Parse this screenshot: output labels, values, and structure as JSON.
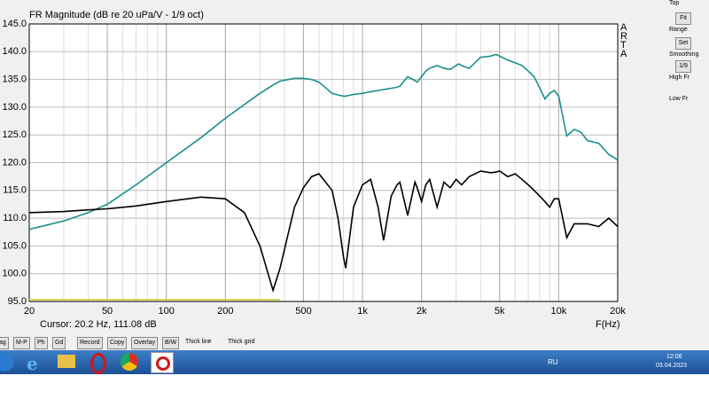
{
  "chart_data": {
    "type": "line",
    "title": "FR Magnitude (dB re 20 uPa/V - 1/9 oct)",
    "x_label": "F(Hz)",
    "cursor": "Cursor: 20.2 Hz, 111.08 dB",
    "side_label": "ARTA",
    "log_x": true,
    "grid": true,
    "xlim": [
      20,
      20000
    ],
    "ylim": [
      95,
      145
    ],
    "xticks": [
      20,
      50,
      100,
      200,
      500,
      {
        "value": 1000,
        "label": "1k"
      },
      {
        "value": 2000,
        "label": "2k"
      },
      {
        "value": 5000,
        "label": "5k"
      },
      {
        "value": 10000,
        "label": "10k"
      },
      {
        "value": 20000,
        "label": "20k"
      }
    ],
    "yticks": [
      {
        "value": 95,
        "label": "95.0"
      },
      {
        "value": 100,
        "label": "100.0"
      },
      {
        "value": 105,
        "label": "105.0"
      },
      {
        "value": 110,
        "label": "110.0"
      },
      {
        "value": 115,
        "label": "115.0"
      },
      {
        "value": 120,
        "label": "120.0"
      },
      {
        "value": 125,
        "label": "125.0"
      },
      {
        "value": 130,
        "label": "130.0"
      },
      {
        "value": 135,
        "label": "135.0"
      },
      {
        "value": 140,
        "label": "140.0"
      },
      {
        "value": 145,
        "label": "145.0"
      }
    ],
    "x": [
      20,
      30,
      40,
      50,
      70,
      100,
      150,
      200,
      250,
      300,
      350,
      380,
      450,
      500,
      550,
      600,
      700,
      750,
      800,
      820,
      900,
      1000,
      1100,
      1200,
      1280,
      1400,
      1500,
      1550,
      1700,
      1850,
      1900,
      2000,
      2100,
      2200,
      2400,
      2600,
      2800,
      3000,
      3100,
      3200,
      3500,
      4000,
      4500,
      4800,
      5000,
      5500,
      6000,
      6500,
      7000,
      7500,
      8000,
      8500,
      9000,
      9500,
      10000,
      11000,
      12000,
      13000,
      14000,
      16000,
      18000,
      20000
    ],
    "series": [
      {
        "color": "#1a8f8c",
        "values": [
          108,
          109.5,
          111,
          112.5,
          116,
          120,
          124.5,
          128,
          130.5,
          132.5,
          134,
          134.7,
          135.2,
          135.2,
          135,
          134.5,
          132.5,
          132.2,
          132,
          132,
          132.3,
          132.5,
          132.8,
          133,
          133.2,
          133.4,
          133.6,
          133.8,
          135.5,
          134.8,
          134.5,
          135.5,
          136.5,
          137,
          137.5,
          137,
          136.8,
          137.5,
          137.8,
          137.5,
          137,
          139,
          139.2,
          139.5,
          139.2,
          138.5,
          138,
          137.5,
          136.5,
          135.5,
          133.5,
          131.5,
          132.5,
          133,
          132,
          124.8,
          126,
          125.5,
          124,
          123.5,
          121.5,
          120.5
        ]
      },
      {
        "color": "#000000",
        "values": [
          111,
          111.2,
          111.5,
          111.7,
          112.2,
          113,
          113.8,
          113.5,
          111,
          105,
          97,
          101,
          112,
          115.5,
          117.5,
          118,
          115,
          110,
          103,
          101,
          112,
          116,
          117,
          112,
          106,
          114,
          116,
          116.5,
          110.5,
          116.5,
          115.5,
          113,
          116,
          117,
          112,
          116.5,
          115.5,
          117,
          116.5,
          116,
          117.5,
          118.5,
          118.2,
          118.3,
          118.5,
          117.5,
          118,
          117,
          116,
          115,
          114,
          113,
          112,
          113.5,
          113.5,
          106.5,
          109,
          109,
          109,
          108.5,
          110,
          108.5
        ]
      }
    ]
  },
  "ui": {
    "side_panel": [
      "Top",
      "Fit",
      "Range",
      "Set",
      "Smoothing",
      "1/9",
      "High Fr",
      "Low Fr"
    ],
    "toolbar": [
      "ag",
      "M-P",
      "Ph",
      "Gd",
      "Record",
      "Copy",
      "Overlay",
      "B/W"
    ],
    "thick_line": "Thick line",
    "thick_grid": "Thick grid",
    "taskbar": {
      "lang": "RU",
      "time": "12:06",
      "date": "03.04.2023"
    }
  }
}
